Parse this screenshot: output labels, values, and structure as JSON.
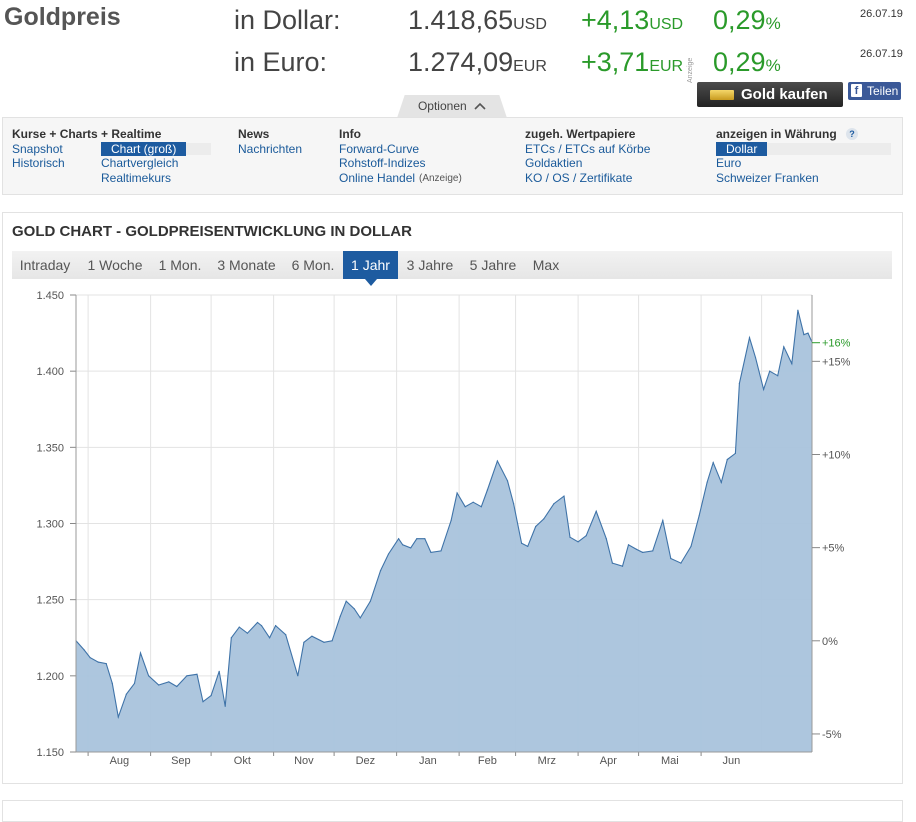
{
  "header": {
    "title": "Goldpreis",
    "usd": {
      "label": "in Dollar:",
      "price": "1.418,65",
      "price_unit": "USD",
      "change": "+4,13",
      "change_unit": "USD",
      "pct": "0,29",
      "pct_unit": "%",
      "date": "26.07.19"
    },
    "eur": {
      "label": "in Euro:",
      "price": "1.274,09",
      "price_unit": "EUR",
      "change": "+3,71",
      "change_unit": "EUR",
      "pct": "0,29",
      "pct_unit": "%",
      "date": "26.07.19"
    },
    "ad_label": "Anzeige",
    "buy_button": "Gold kaufen",
    "share_button": "Teilen",
    "share_icon_letter": "f",
    "options_tab": "Optionen"
  },
  "nav": {
    "col1": {
      "heading": "Kurse + Charts + Realtime",
      "links": [
        "Snapshot",
        "Historisch"
      ]
    },
    "col1b": {
      "links": [
        "Chart (groß)",
        "Chartvergleich",
        "Realtimekurs"
      ],
      "selected_index": 0
    },
    "col2": {
      "heading": "News",
      "links": [
        "Nachrichten"
      ]
    },
    "col3": {
      "heading": "Info",
      "links": [
        "Forward-Curve",
        "Rohstoff-Indizes",
        "Online Handel"
      ],
      "ad_note": "(Anzeige)"
    },
    "col4": {
      "heading": "zugeh. Wertpapiere",
      "links": [
        "ETCs / ETCs auf Körbe",
        "Goldaktien",
        "KO / OS / Zertifikate"
      ]
    },
    "col5": {
      "heading": "anzeigen in Währung",
      "help": "?",
      "links": [
        "Dollar",
        "Euro",
        "Schweizer Franken"
      ],
      "selected_index": 0
    }
  },
  "chart_section": {
    "title": "GOLD CHART - GOLDPREISENTWICKLUNG IN DOLLAR",
    "tabs": [
      "Intraday",
      "1 Woche",
      "1 Mon.",
      "3 Monate",
      "6 Mon.",
      "1 Jahr",
      "3 Jahre",
      "5 Jahre",
      "Max"
    ],
    "active_tab": 5
  },
  "colors": {
    "accent": "#1d5ba0",
    "positive": "#2a9a2a",
    "area_fill": "#a9c3dc",
    "line": "#3f73a8"
  },
  "chart_data": {
    "type": "area",
    "x_tick_labels": [
      "Aug",
      "Sep",
      "Okt",
      "Nov",
      "Dez",
      "Jan",
      "Feb",
      "Mrz",
      "Apr",
      "Mai",
      "Jun"
    ],
    "x_start": "2018-07-26",
    "x_end": "2019-07-26",
    "ylim": [
      1150,
      1450
    ],
    "y_ticks": [
      1150,
      1200,
      1250,
      1300,
      1350,
      1400,
      1450
    ],
    "y_tick_labels": [
      "1.150",
      "1.200",
      "1.250",
      "1.300",
      "1.350",
      "1.400",
      "1.450"
    ],
    "right_ticks": [
      -5,
      0,
      5,
      10,
      15
    ],
    "right_tick_labels": [
      "-5%",
      "0%",
      "+5%",
      "+10%",
      "+15%"
    ],
    "current_change_label": "+16%",
    "current_change_value": 16,
    "grid": true,
    "series": [
      {
        "values": [
          {
            "x": "2018-07-26",
            "y": 1223
          },
          {
            "x": "2018-07-30",
            "y": 1217
          },
          {
            "x": "2018-08-02",
            "y": 1212
          },
          {
            "x": "2018-08-06",
            "y": 1209
          },
          {
            "x": "2018-08-10",
            "y": 1208
          },
          {
            "x": "2018-08-13",
            "y": 1195
          },
          {
            "x": "2018-08-16",
            "y": 1173
          },
          {
            "x": "2018-08-20",
            "y": 1188
          },
          {
            "x": "2018-08-24",
            "y": 1195
          },
          {
            "x": "2018-08-27",
            "y": 1215
          },
          {
            "x": "2018-08-31",
            "y": 1200
          },
          {
            "x": "2018-09-05",
            "y": 1194
          },
          {
            "x": "2018-09-10",
            "y": 1196
          },
          {
            "x": "2018-09-14",
            "y": 1193
          },
          {
            "x": "2018-09-19",
            "y": 1200
          },
          {
            "x": "2018-09-24",
            "y": 1201
          },
          {
            "x": "2018-09-27",
            "y": 1183
          },
          {
            "x": "2018-10-01",
            "y": 1187
          },
          {
            "x": "2018-10-05",
            "y": 1203
          },
          {
            "x": "2018-10-08",
            "y": 1180
          },
          {
            "x": "2018-10-11",
            "y": 1225
          },
          {
            "x": "2018-10-15",
            "y": 1232
          },
          {
            "x": "2018-10-19",
            "y": 1228
          },
          {
            "x": "2018-10-24",
            "y": 1235
          },
          {
            "x": "2018-10-26",
            "y": 1233
          },
          {
            "x": "2018-10-30",
            "y": 1225
          },
          {
            "x": "2018-11-02",
            "y": 1233
          },
          {
            "x": "2018-11-07",
            "y": 1227
          },
          {
            "x": "2018-11-13",
            "y": 1200
          },
          {
            "x": "2018-11-16",
            "y": 1222
          },
          {
            "x": "2018-11-20",
            "y": 1226
          },
          {
            "x": "2018-11-26",
            "y": 1222
          },
          {
            "x": "2018-11-30",
            "y": 1223
          },
          {
            "x": "2018-12-04",
            "y": 1239
          },
          {
            "x": "2018-12-07",
            "y": 1249
          },
          {
            "x": "2018-12-11",
            "y": 1244
          },
          {
            "x": "2018-12-14",
            "y": 1238
          },
          {
            "x": "2018-12-19",
            "y": 1249
          },
          {
            "x": "2018-12-24",
            "y": 1269
          },
          {
            "x": "2018-12-28",
            "y": 1280
          },
          {
            "x": "2019-01-02",
            "y": 1290
          },
          {
            "x": "2019-01-04",
            "y": 1286
          },
          {
            "x": "2019-01-08",
            "y": 1284
          },
          {
            "x": "2019-01-11",
            "y": 1290
          },
          {
            "x": "2019-01-15",
            "y": 1290
          },
          {
            "x": "2019-01-18",
            "y": 1281
          },
          {
            "x": "2019-01-23",
            "y": 1282
          },
          {
            "x": "2019-01-28",
            "y": 1302
          },
          {
            "x": "2019-01-31",
            "y": 1320
          },
          {
            "x": "2019-02-04",
            "y": 1311
          },
          {
            "x": "2019-02-08",
            "y": 1314
          },
          {
            "x": "2019-02-12",
            "y": 1311
          },
          {
            "x": "2019-02-15",
            "y": 1322
          },
          {
            "x": "2019-02-20",
            "y": 1341
          },
          {
            "x": "2019-02-25",
            "y": 1328
          },
          {
            "x": "2019-02-28",
            "y": 1313
          },
          {
            "x": "2019-03-04",
            "y": 1287
          },
          {
            "x": "2019-03-07",
            "y": 1285
          },
          {
            "x": "2019-03-11",
            "y": 1298
          },
          {
            "x": "2019-03-15",
            "y": 1303
          },
          {
            "x": "2019-03-20",
            "y": 1313
          },
          {
            "x": "2019-03-25",
            "y": 1318
          },
          {
            "x": "2019-03-28",
            "y": 1291
          },
          {
            "x": "2019-04-01",
            "y": 1288
          },
          {
            "x": "2019-04-05",
            "y": 1292
          },
          {
            "x": "2019-04-10",
            "y": 1308
          },
          {
            "x": "2019-04-15",
            "y": 1290
          },
          {
            "x": "2019-04-18",
            "y": 1274
          },
          {
            "x": "2019-04-23",
            "y": 1272
          },
          {
            "x": "2019-04-26",
            "y": 1286
          },
          {
            "x": "2019-04-30",
            "y": 1283
          },
          {
            "x": "2019-05-03",
            "y": 1281
          },
          {
            "x": "2019-05-08",
            "y": 1282
          },
          {
            "x": "2019-05-13",
            "y": 1302
          },
          {
            "x": "2019-05-17",
            "y": 1277
          },
          {
            "x": "2019-05-22",
            "y": 1274
          },
          {
            "x": "2019-05-27",
            "y": 1285
          },
          {
            "x": "2019-05-31",
            "y": 1305
          },
          {
            "x": "2019-06-04",
            "y": 1327
          },
          {
            "x": "2019-06-07",
            "y": 1340
          },
          {
            "x": "2019-06-11",
            "y": 1327
          },
          {
            "x": "2019-06-14",
            "y": 1342
          },
          {
            "x": "2019-06-18",
            "y": 1346
          },
          {
            "x": "2019-06-20",
            "y": 1392
          },
          {
            "x": "2019-06-25",
            "y": 1422
          },
          {
            "x": "2019-06-28",
            "y": 1409
          },
          {
            "x": "2019-07-02",
            "y": 1388
          },
          {
            "x": "2019-07-05",
            "y": 1400
          },
          {
            "x": "2019-07-09",
            "y": 1397
          },
          {
            "x": "2019-07-12",
            "y": 1416
          },
          {
            "x": "2019-07-16",
            "y": 1405
          },
          {
            "x": "2019-07-19",
            "y": 1440
          },
          {
            "x": "2019-07-22",
            "y": 1424
          },
          {
            "x": "2019-07-24",
            "y": 1425
          },
          {
            "x": "2019-07-26",
            "y": 1419
          }
        ]
      }
    ]
  }
}
